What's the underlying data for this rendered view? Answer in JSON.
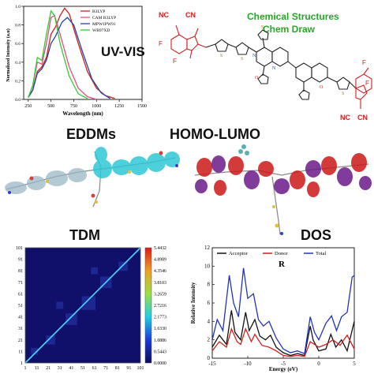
{
  "labels": {
    "uv": "UV-VIS",
    "chem_line1": "Chemical Structures",
    "chem_line2": "Chem Draw",
    "eddm": "EDDMs",
    "homo": "HOMO-LUMO",
    "tdm": "TDM",
    "dos": "DOS"
  },
  "molecule": {
    "nc": "NC",
    "cn": "CN",
    "f": "F",
    "n": "N",
    "s": "S",
    "o": "O"
  },
  "uv_chart": {
    "type": "line",
    "xlabel": "Wavelength (nm)",
    "ylabel": "Normalized Intensity (a.u)",
    "xlim": [
      200,
      1500
    ],
    "ylim": [
      0,
      1.0
    ],
    "x_ticks": [
      "250",
      "500",
      "750",
      "1000",
      "1250",
      "1500"
    ],
    "y_ticks": [
      "0.0",
      "0.2",
      "0.4",
      "0.6",
      "0.8",
      "1.0"
    ],
    "series": [
      {
        "name": "B3LYP",
        "color": "#cc2222",
        "points": [
          [
            250,
            0.02
          ],
          [
            300,
            0.1
          ],
          [
            350,
            0.3
          ],
          [
            400,
            0.35
          ],
          [
            450,
            0.45
          ],
          [
            500,
            0.7
          ],
          [
            550,
            0.78
          ],
          [
            600,
            0.9
          ],
          [
            650,
            0.98
          ],
          [
            700,
            0.92
          ],
          [
            800,
            0.6
          ],
          [
            900,
            0.3
          ],
          [
            1000,
            0.12
          ],
          [
            1100,
            0.04
          ],
          [
            1200,
            0.01
          ]
        ]
      },
      {
        "name": "CAM B3LYP",
        "color": "#e05080",
        "points": [
          [
            250,
            0.02
          ],
          [
            300,
            0.15
          ],
          [
            350,
            0.4
          ],
          [
            400,
            0.38
          ],
          [
            450,
            0.6
          ],
          [
            500,
            0.88
          ],
          [
            540,
            0.9
          ],
          [
            600,
            0.7
          ],
          [
            700,
            0.35
          ],
          [
            800,
            0.12
          ],
          [
            900,
            0.03
          ],
          [
            1000,
            0.0
          ]
        ]
      },
      {
        "name": "MPW1PW91",
        "color": "#2244aa",
        "points": [
          [
            250,
            0.02
          ],
          [
            300,
            0.1
          ],
          [
            350,
            0.28
          ],
          [
            400,
            0.33
          ],
          [
            450,
            0.42
          ],
          [
            500,
            0.6
          ],
          [
            550,
            0.68
          ],
          [
            620,
            0.83
          ],
          [
            680,
            0.88
          ],
          [
            750,
            0.8
          ],
          [
            850,
            0.5
          ],
          [
            950,
            0.22
          ],
          [
            1050,
            0.07
          ],
          [
            1150,
            0.01
          ]
        ]
      },
      {
        "name": "WB97XD",
        "color": "#33cc33",
        "points": [
          [
            250,
            0.02
          ],
          [
            300,
            0.15
          ],
          [
            350,
            0.45
          ],
          [
            400,
            0.42
          ],
          [
            450,
            0.7
          ],
          [
            500,
            0.95
          ],
          [
            540,
            0.9
          ],
          [
            600,
            0.6
          ],
          [
            700,
            0.25
          ],
          [
            800,
            0.06
          ],
          [
            900,
            0.01
          ]
        ]
      }
    ]
  },
  "tdm_chart": {
    "type": "heatmap",
    "x_ticks": [
      "1",
      "11",
      "21",
      "31",
      "41",
      "51",
      "61",
      "71",
      "81",
      "91",
      "101"
    ],
    "y_ticks": [
      "101",
      "91",
      "81",
      "71",
      "61",
      "51",
      "41",
      "31",
      "21",
      "11",
      "1"
    ],
    "colorbar_ticks": [
      "5.4432",
      "4.8989",
      "4.3546",
      "3.8103",
      "3.2659",
      "2.7216",
      "2.1773",
      "1.6330",
      "1.0886",
      "0.5443",
      "0.0000"
    ]
  },
  "dos_chart": {
    "type": "line",
    "title": "R",
    "xlabel": "Energy (eV)",
    "ylabel": "Relative Intensity",
    "xlim": [
      -15,
      5
    ],
    "ylim": [
      0,
      12
    ],
    "x_ticks": [
      "-15",
      "-10",
      "-5",
      "0",
      "5"
    ],
    "y_ticks": [
      "0",
      "2",
      "4",
      "6",
      "8",
      "10",
      "12"
    ],
    "series": [
      {
        "name": "Acceptor",
        "color": "#111111",
        "points": [
          [
            -15,
            1.2
          ],
          [
            -14,
            2.5
          ],
          [
            -13,
            1.5
          ],
          [
            -12.3,
            5.2
          ],
          [
            -11.8,
            2.8
          ],
          [
            -11,
            2.0
          ],
          [
            -10.3,
            5.0
          ],
          [
            -9.8,
            3.0
          ],
          [
            -9,
            4.2
          ],
          [
            -8.3,
            2.4
          ],
          [
            -7.5,
            2.0
          ],
          [
            -6.8,
            2.5
          ],
          [
            -6,
            1.2
          ],
          [
            -5,
            0.6
          ],
          [
            -4,
            0.3
          ],
          [
            -3,
            0.5
          ],
          [
            -2,
            0.3
          ],
          [
            -1.2,
            3.5
          ],
          [
            -0.8,
            2.0
          ],
          [
            0,
            0.8
          ],
          [
            1,
            1.0
          ],
          [
            1.7,
            2.6
          ],
          [
            2.4,
            1.2
          ],
          [
            3.2,
            2.0
          ],
          [
            4,
            0.8
          ],
          [
            5,
            4.0
          ]
        ]
      },
      {
        "name": "Donor",
        "color": "#d02020",
        "points": [
          [
            -15,
            0.8
          ],
          [
            -14,
            1.8
          ],
          [
            -13,
            1.2
          ],
          [
            -12.3,
            3.2
          ],
          [
            -11.5,
            1.8
          ],
          [
            -11,
            1.5
          ],
          [
            -10.3,
            3.2
          ],
          [
            -9.5,
            1.8
          ],
          [
            -9,
            2.6
          ],
          [
            -8,
            1.4
          ],
          [
            -7,
            1.2
          ],
          [
            -6,
            0.8
          ],
          [
            -5,
            0.3
          ],
          [
            -4,
            0.2
          ],
          [
            -3,
            0.3
          ],
          [
            -2,
            0.2
          ],
          [
            -1.2,
            1.8
          ],
          [
            0,
            1.2
          ],
          [
            1,
            1.5
          ],
          [
            2,
            2.0
          ],
          [
            3,
            1.4
          ],
          [
            4,
            2.5
          ],
          [
            5,
            1.0
          ]
        ]
      },
      {
        "name": "Total",
        "color": "#2233bb",
        "points": [
          [
            -15,
            2.0
          ],
          [
            -14.3,
            4.2
          ],
          [
            -13.5,
            3.0
          ],
          [
            -12.6,
            9.0
          ],
          [
            -12,
            6.0
          ],
          [
            -11.3,
            4.5
          ],
          [
            -10.6,
            9.8
          ],
          [
            -10,
            6.5
          ],
          [
            -9.2,
            7.0
          ],
          [
            -8.5,
            4.2
          ],
          [
            -7.8,
            3.5
          ],
          [
            -7,
            4.0
          ],
          [
            -6,
            2.2
          ],
          [
            -5,
            1.0
          ],
          [
            -4,
            0.6
          ],
          [
            -3,
            0.8
          ],
          [
            -2,
            0.5
          ],
          [
            -1.2,
            4.5
          ],
          [
            -0.6,
            2.8
          ],
          [
            0,
            2.0
          ],
          [
            1,
            3.8
          ],
          [
            1.8,
            4.6
          ],
          [
            2.5,
            3.0
          ],
          [
            3.2,
            4.5
          ],
          [
            4,
            5.0
          ],
          [
            4.7,
            8.8
          ],
          [
            5,
            9.0
          ]
        ]
      }
    ]
  }
}
